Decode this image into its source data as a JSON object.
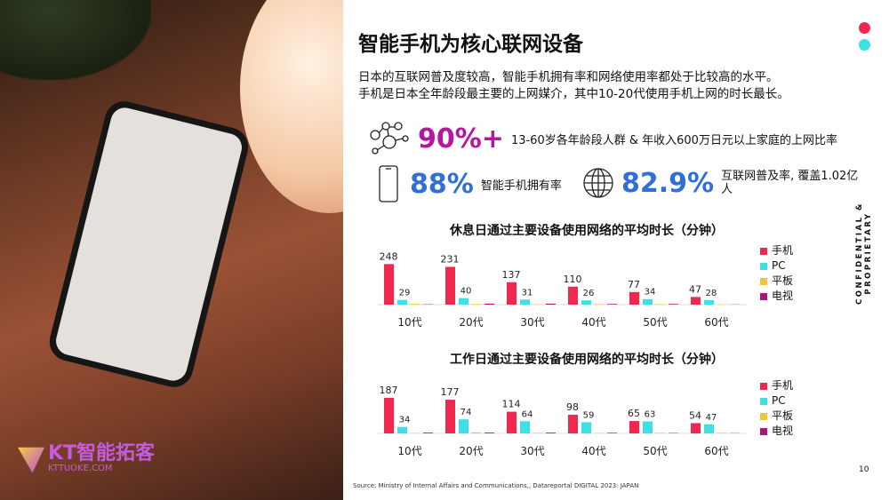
{
  "title": "智能手机为核心联网设备",
  "intro": [
    "日本的互联网普及度较高，智能手机拥有率和网络使用率都处于比较高的水平。",
    "手机是日本全年龄段最主要的上网媒介，其中10-20代使用手机上网的时长最长。"
  ],
  "stats": [
    {
      "value": "90%+",
      "label": "13-60岁各年龄段人群 & 年收入600万日元以上家庭的上网比率",
      "icon": "network-people-icon",
      "color": "#b5179e"
    },
    {
      "value": "88%",
      "label": "智能手机拥有率",
      "icon": "smartphone-icon",
      "color": "#2f6fd8"
    },
    {
      "value": "82.9%",
      "label": "互联网普及率, 覆盖1.02亿人",
      "icon": "globe-icon",
      "color": "#2f6fd8"
    }
  ],
  "colors": {
    "手机": "#f0274f",
    "PC": "#3de0e6",
    "平板": "#f0c53c",
    "电视": "#b0127a"
  },
  "chart_data": [
    {
      "type": "bar",
      "title": "休息日通过主要设备使用网络的平均时长（分钟）",
      "categories": [
        "10代",
        "20代",
        "30代",
        "40代",
        "50代",
        "60代"
      ],
      "ylim": [
        0,
        250
      ],
      "series": [
        {
          "name": "手机",
          "values": [
            248,
            231,
            137,
            110,
            77,
            47
          ]
        },
        {
          "name": "PC",
          "values": [
            29,
            40,
            31,
            26,
            34,
            28
          ]
        },
        {
          "name": "平板",
          "values": [
            5,
            4,
            2,
            3,
            3,
            2
          ]
        },
        {
          "name": "电视",
          "values": [
            2,
            6,
            6,
            4,
            4,
            1
          ]
        }
      ],
      "labeled_series": [
        "手机",
        "PC"
      ],
      "legend": "right"
    },
    {
      "type": "bar",
      "title": "工作日通过主要设备使用网络的平均时长（分钟）",
      "categories": [
        "10代",
        "20代",
        "30代",
        "40代",
        "50代",
        "60代"
      ],
      "ylim": [
        0,
        215
      ],
      "series": [
        {
          "name": "手机",
          "values": [
            187,
            177,
            114,
            98,
            65,
            54
          ]
        },
        {
          "name": "PC",
          "values": [
            34,
            74,
            64,
            59,
            63,
            47
          ]
        },
        {
          "name": "平板",
          "values": [
            2,
            5,
            3,
            2,
            3,
            3
          ]
        },
        {
          "name": "电视",
          "values": [
            4,
            4,
            4,
            3,
            2,
            1
          ]
        }
      ],
      "labeled_series": [
        "手机",
        "PC"
      ],
      "legend": "right"
    }
  ],
  "confidential": "CONFIDENTIAL & PROPRIETARY",
  "page_number": "10",
  "source": "Source: Ministry of Internal Affairs and Communications,, Datareportal DIGITAL 2023: JAPAN",
  "logo": {
    "name": "KT智能拓客",
    "domain": "KTTUOKE.COM"
  }
}
